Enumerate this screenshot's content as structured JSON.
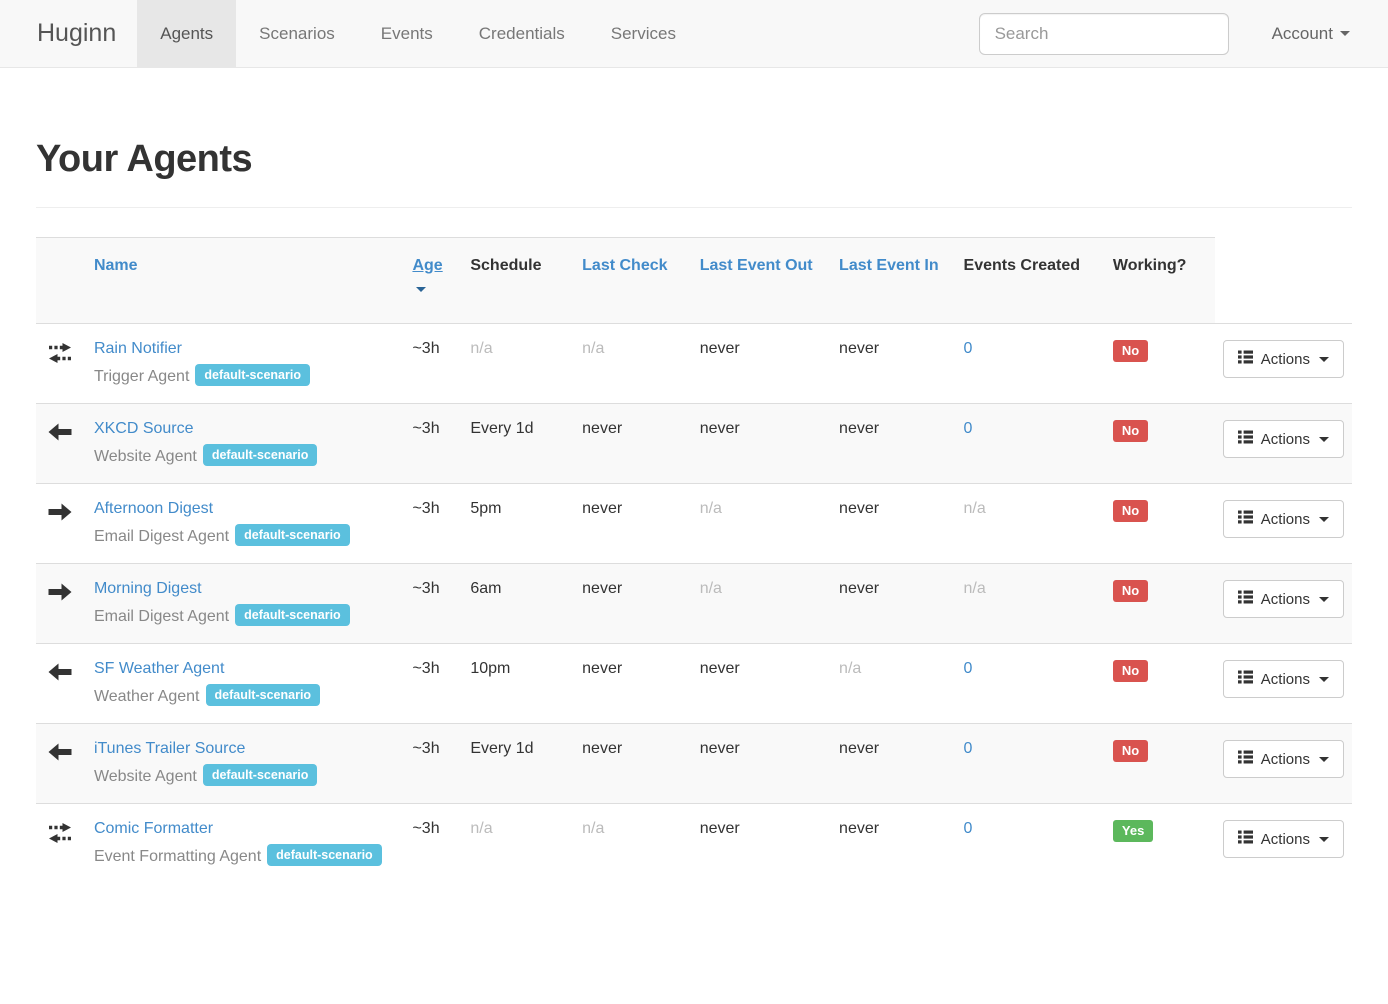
{
  "navbar": {
    "brand": "Huginn",
    "items": [
      {
        "label": "Agents",
        "active": true
      },
      {
        "label": "Scenarios",
        "active": false
      },
      {
        "label": "Events",
        "active": false
      },
      {
        "label": "Credentials",
        "active": false
      },
      {
        "label": "Services",
        "active": false
      }
    ],
    "search_placeholder": "Search",
    "account_label": "Account"
  },
  "page": {
    "title": "Your Agents"
  },
  "table": {
    "headers": [
      {
        "label": "Name",
        "sortable": true,
        "sorted": false
      },
      {
        "label": "Age",
        "sortable": true,
        "sorted": true,
        "sort_direction": "desc"
      },
      {
        "label": "Schedule",
        "sortable": false
      },
      {
        "label": "Last Check",
        "sortable": true,
        "sorted": false
      },
      {
        "label": "Last Event Out",
        "sortable": true,
        "sorted": false
      },
      {
        "label": "Last Event In",
        "sortable": true,
        "sorted": false
      },
      {
        "label": "Events Created",
        "sortable": false
      },
      {
        "label": "Working?",
        "sortable": false
      }
    ],
    "actions_label": "Actions",
    "rows": [
      {
        "icon": "both-arrows",
        "name": "Rain Notifier",
        "type": "Trigger Agent",
        "badge": "default-scenario",
        "age": "~3h",
        "schedule": "n/a",
        "last_check": "n/a",
        "last_event_out": "never",
        "last_event_in": "never",
        "events_created": "0",
        "working": "No"
      },
      {
        "icon": "arrow-left",
        "name": "XKCD Source",
        "type": "Website Agent",
        "badge": "default-scenario",
        "age": "~3h",
        "schedule": "Every 1d",
        "last_check": "never",
        "last_event_out": "never",
        "last_event_in": "never",
        "events_created": "0",
        "working": "No"
      },
      {
        "icon": "arrow-right",
        "name": "Afternoon Digest",
        "type": "Email Digest Agent",
        "badge": "default-scenario",
        "age": "~3h",
        "schedule": "5pm",
        "last_check": "never",
        "last_event_out": "n/a",
        "last_event_in": "never",
        "events_created": "n/a",
        "working": "No"
      },
      {
        "icon": "arrow-right",
        "name": "Morning Digest",
        "type": "Email Digest Agent",
        "badge": "default-scenario",
        "age": "~3h",
        "schedule": "6am",
        "last_check": "never",
        "last_event_out": "n/a",
        "last_event_in": "never",
        "events_created": "n/a",
        "working": "No"
      },
      {
        "icon": "arrow-left",
        "name": "SF Weather Agent",
        "type": "Weather Agent",
        "badge": "default-scenario",
        "age": "~3h",
        "schedule": "10pm",
        "last_check": "never",
        "last_event_out": "never",
        "last_event_in": "n/a",
        "events_created": "0",
        "working": "No"
      },
      {
        "icon": "arrow-left",
        "name": "iTunes Trailer Source",
        "type": "Website Agent",
        "badge": "default-scenario",
        "age": "~3h",
        "schedule": "Every 1d",
        "last_check": "never",
        "last_event_out": "never",
        "last_event_in": "never",
        "events_created": "0",
        "working": "No"
      },
      {
        "icon": "both-arrows",
        "name": "Comic Formatter",
        "type": "Event Formatting Agent",
        "badge": "default-scenario",
        "age": "~3h",
        "schedule": "n/a",
        "last_check": "n/a",
        "last_event_out": "never",
        "last_event_in": "never",
        "events_created": "0",
        "working": "Yes"
      }
    ]
  },
  "colors": {
    "link": "#428bca",
    "badge_info": "#5bc0de",
    "working_no": "#d9534f",
    "working_yes": "#5cb85c",
    "navbar_bg": "#f8f8f8",
    "stripe": "#f9f9f9"
  }
}
